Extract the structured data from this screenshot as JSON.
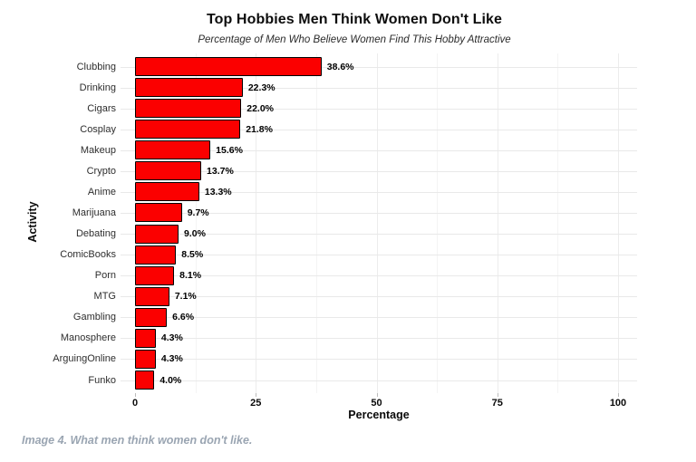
{
  "chart_data": {
    "type": "bar",
    "orientation": "horizontal",
    "title": "Top Hobbies Men Think Women Don't Like",
    "subtitle": "Percentage of Men Who Believe Women Find This Hobby Attractive",
    "xlabel": "Percentage",
    "ylabel": "Activity",
    "categories": [
      "Clubbing",
      "Drinking",
      "Cigars",
      "Cosplay",
      "Makeup",
      "Crypto",
      "Anime",
      "Marijuana",
      "Debating",
      "ComicBooks",
      "Porn",
      "MTG",
      "Gambling",
      "Manosphere",
      "ArguingOnline",
      "Funko"
    ],
    "values": [
      38.6,
      22.3,
      22.0,
      21.8,
      15.6,
      13.7,
      13.3,
      9.7,
      9.0,
      8.5,
      8.1,
      7.1,
      6.6,
      4.3,
      4.3,
      4.0
    ],
    "value_labels": [
      "38.6%",
      "22.3%",
      "22.0%",
      "21.8%",
      "15.6%",
      "13.7%",
      "13.3%",
      "9.7%",
      "9.0%",
      "8.5%",
      "8.1%",
      "7.1%",
      "6.6%",
      "4.3%",
      "4.3%",
      "4.0%"
    ],
    "xlim": [
      0,
      100
    ],
    "xticks": [
      0,
      25,
      50,
      75,
      100
    ],
    "xminor_step": 12.5,
    "grid": true,
    "legend": false,
    "bar_color": "#fb0000",
    "bar_border_color": "#000000",
    "major_grid_color": "#ececec",
    "minor_grid_color": "#f4f4f4",
    "row_grid_color": "#e9e9e9"
  },
  "caption": {
    "text": "Image 4. What men think women don't like.",
    "color": "#9aa5b2"
  }
}
